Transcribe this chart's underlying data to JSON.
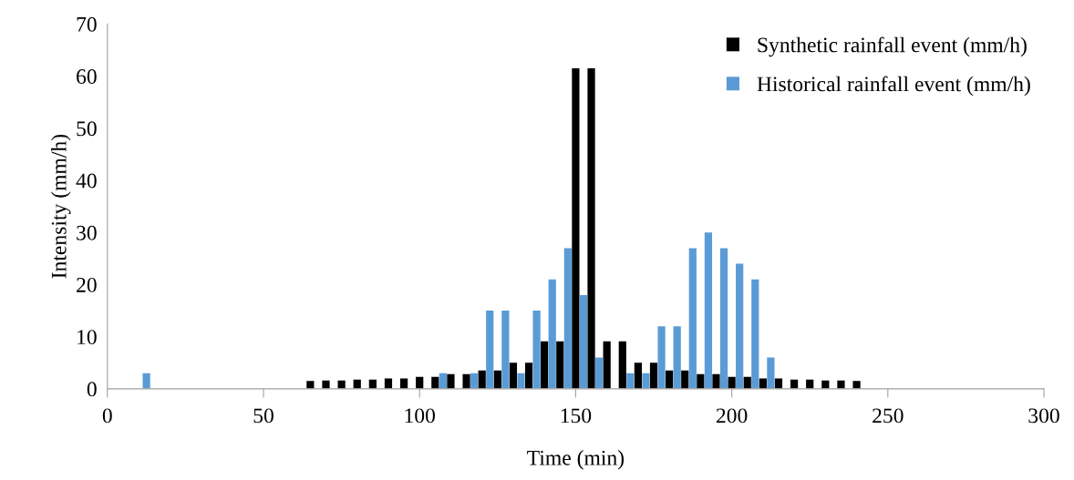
{
  "chart_data": {
    "type": "bar",
    "xlabel": "Time (min)",
    "ylabel": "Intensity (mm/h)",
    "xlim": [
      0,
      300
    ],
    "xticks": [
      0,
      50,
      100,
      150,
      200,
      250,
      300
    ],
    "ylim": [
      0,
      70
    ],
    "yticks": [
      0,
      10,
      20,
      30,
      40,
      50,
      60,
      70
    ],
    "grid": false,
    "legend": "top right",
    "series": [
      {
        "name": "Synthetic rainfall event (mm/h)",
        "color": "#000000",
        "x": [
          65,
          70,
          75,
          80,
          85,
          90,
          95,
          100,
          105,
          110,
          115,
          120,
          125,
          130,
          135,
          140,
          145,
          150,
          155,
          160,
          165,
          170,
          175,
          180,
          185,
          190,
          195,
          200,
          205,
          210,
          215,
          220,
          225,
          230,
          235,
          240
        ],
        "values": [
          1.5,
          1.6,
          1.6,
          1.75,
          1.75,
          2.0,
          2.0,
          2.3,
          2.3,
          2.8,
          2.8,
          3.5,
          3.5,
          5,
          5,
          9.1,
          9.1,
          61.5,
          61.5,
          9.1,
          9.1,
          5,
          5,
          3.5,
          3.5,
          2.8,
          2.8,
          2.3,
          2.3,
          2.0,
          2.0,
          1.75,
          1.75,
          1.6,
          1.6,
          1.5
        ]
      },
      {
        "name": "Historical rainfall event (mm/h)",
        "color": "#5b9bd5",
        "x": [
          12.5,
          107.5,
          117.5,
          122.5,
          127.5,
          132.5,
          137.5,
          142.5,
          147.5,
          152.5,
          157.5,
          167.5,
          172.5,
          177.5,
          182.5,
          187.5,
          192.5,
          197.5,
          202.5,
          207.5,
          212.5
        ],
        "values": [
          3,
          3,
          3,
          15,
          15,
          3,
          15,
          21,
          27,
          18,
          6,
          3,
          3,
          12,
          12,
          27,
          30,
          27,
          24,
          21,
          6
        ]
      }
    ]
  }
}
